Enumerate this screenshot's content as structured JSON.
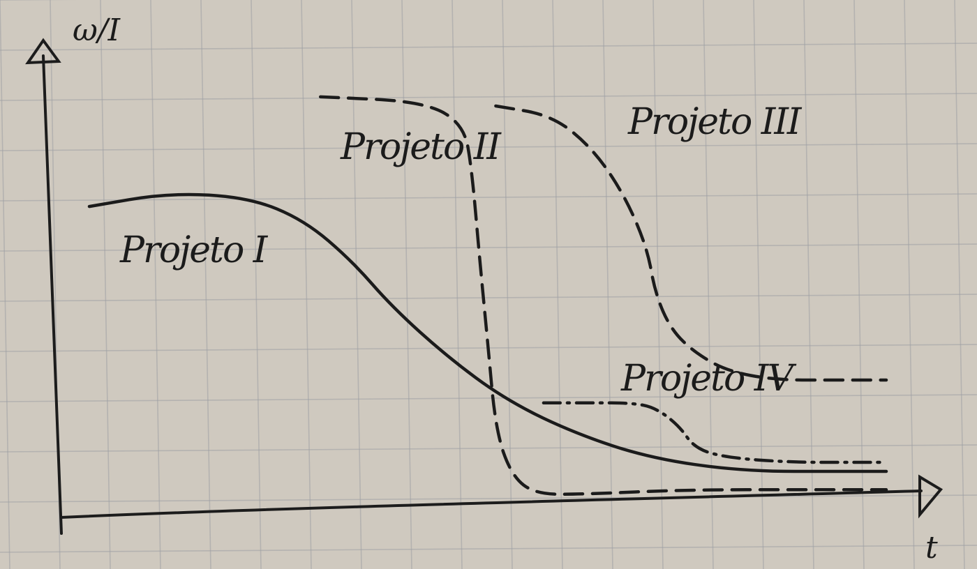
{
  "chart_data": {
    "type": "line",
    "title": "",
    "ylabel": "ω/I",
    "xlabel": "t",
    "grid": true,
    "ylim": [
      0,
      1
    ],
    "xlim": [
      0,
      1
    ],
    "series": [
      {
        "name": "Projeto I",
        "style": "solid",
        "x": [
          0.0,
          0.1,
          0.2,
          0.27,
          0.33,
          0.38,
          0.45,
          0.52,
          0.6,
          0.7,
          0.82,
          0.95,
          1.0
        ],
        "y": [
          0.67,
          0.7,
          0.69,
          0.64,
          0.55,
          0.45,
          0.34,
          0.25,
          0.18,
          0.12,
          0.09,
          0.09,
          0.09
        ]
      },
      {
        "name": "Projeto II",
        "style": "dashed",
        "x": [
          0.29,
          0.42,
          0.47,
          0.48,
          0.49,
          0.5,
          0.51,
          0.53,
          0.56,
          0.62,
          0.75,
          0.9,
          1.0
        ],
        "y": [
          0.91,
          0.9,
          0.85,
          0.75,
          0.55,
          0.37,
          0.18,
          0.08,
          0.04,
          0.04,
          0.05,
          0.05,
          0.05
        ]
      },
      {
        "name": "Projeto III",
        "style": "dashed",
        "x": [
          0.51,
          0.58,
          0.63,
          0.67,
          0.7,
          0.71,
          0.73,
          0.76,
          0.8,
          0.86,
          0.94,
          1.0
        ],
        "y": [
          0.89,
          0.87,
          0.8,
          0.7,
          0.58,
          0.48,
          0.4,
          0.35,
          0.31,
          0.29,
          0.29,
          0.29
        ]
      },
      {
        "name": "Projeto IV",
        "style": "dash-dot",
        "x": [
          0.57,
          0.63,
          0.68,
          0.71,
          0.74,
          0.76,
          0.8,
          0.88,
          0.96,
          1.0
        ],
        "y": [
          0.24,
          0.24,
          0.24,
          0.23,
          0.19,
          0.14,
          0.12,
          0.11,
          0.11,
          0.11
        ]
      }
    ]
  }
}
